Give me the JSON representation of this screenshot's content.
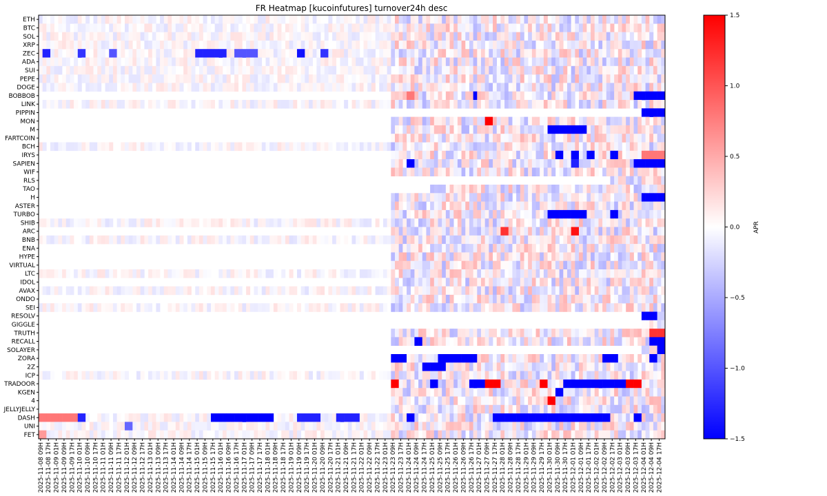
{
  "chart_data": {
    "type": "heatmap",
    "title": "FR Heatmap [kucoinfutures] turnover24h desc",
    "colorbar_label": "APR",
    "colormap": "bwr",
    "vmin": -1.5,
    "vmax": 1.5,
    "colorbar_ticks": [
      "1.5",
      "1.0",
      "0.5",
      "0.0",
      "−0.5",
      "−1.0",
      "−1.5"
    ],
    "colorbar_tick_values": [
      1.5,
      1.0,
      0.5,
      0.0,
      -0.5,
      -1.0,
      -1.5
    ],
    "rows": [
      "ETH",
      "BTC",
      "SOL",
      "XRP",
      "ZEC",
      "ADA",
      "SUI",
      "PEPE",
      "DOGE",
      "BOBBOB",
      "LINK",
      "PIPPIN",
      "MON",
      "M",
      "FARTCOIN",
      "BCH",
      "IRYS",
      "SAPIEN",
      "WIF",
      "RLS",
      "TAO",
      "H",
      "ASTER",
      "TURBO",
      "SHIB",
      "ARC",
      "BNB",
      "ENA",
      "HYPE",
      "VIRTUAL",
      "LTC",
      "IDOL",
      "AVAX",
      "ONDO",
      "SEI",
      "RESOLV",
      "GIGGLE",
      "TRUTH",
      "RECALL",
      "SOLAYER",
      "ZORA",
      "2Z",
      "ICP",
      "TRADOOR",
      "KGEN",
      "4",
      "JELLYJELLY",
      "DASH",
      "UNI",
      "FET"
    ],
    "x_labels": [
      "2025-11-08 09H",
      "2025-11-08 17H",
      "2025-11-09 01H",
      "2025-11-09 09H",
      "2025-11-09 17H",
      "2025-11-10 01H",
      "2025-11-10 09H",
      "2025-11-10 17H",
      "2025-11-11 01H",
      "2025-11-11 09H",
      "2025-11-11 17H",
      "2025-11-12 01H",
      "2025-11-12 09H",
      "2025-11-12 17H",
      "2025-11-13 01H",
      "2025-11-13 09H",
      "2025-11-13 17H",
      "2025-11-14 01H",
      "2025-11-14 09H",
      "2025-11-14 17H",
      "2025-11-15 01H",
      "2025-11-15 09H",
      "2025-11-15 17H",
      "2025-11-16 01H",
      "2025-11-16 09H",
      "2025-11-16 17H",
      "2025-11-17 01H",
      "2025-11-17 09H",
      "2025-11-17 17H",
      "2025-11-18 01H",
      "2025-11-18 09H",
      "2025-11-18 17H",
      "2025-11-19 01H",
      "2025-11-19 09H",
      "2025-11-19 17H",
      "2025-11-20 01H",
      "2025-11-20 09H",
      "2025-11-20 17H",
      "2025-11-21 01H",
      "2025-11-21 09H",
      "2025-11-21 17H",
      "2025-11-22 01H",
      "2025-11-22 09H",
      "2025-11-22 17H",
      "2025-11-23 01H",
      "2025-11-23 09H",
      "2025-11-23 17H",
      "2025-11-24 01H",
      "2025-11-24 09H",
      "2025-11-24 17H",
      "2025-11-25 01H",
      "2025-11-25 09H",
      "2025-11-25 17H",
      "2025-11-26 01H",
      "2025-11-26 09H",
      "2025-11-26 17H",
      "2025-11-27 01H",
      "2025-11-27 09H",
      "2025-11-27 17H",
      "2025-11-28 01H",
      "2025-11-28 09H",
      "2025-11-28 17H",
      "2025-11-29 01H",
      "2025-11-29 09H",
      "2025-11-29 17H",
      "2025-11-30 01H",
      "2025-11-30 09H",
      "2025-11-30 17H",
      "2025-12-01 01H",
      "2025-12-01 09H",
      "2025-12-01 17H",
      "2025-12-02 01H",
      "2025-12-02 09H",
      "2025-12-02 17H",
      "2025-12-03 01H",
      "2025-12-03 09H",
      "2025-12-03 17H",
      "2025-12-04 01H",
      "2025-12-04 09H",
      "2025-12-04 17H"
    ],
    "cells_per_label": 2,
    "num_columns": 160,
    "listing_start_column": 90,
    "missing_before_listing_rows": [
      "BOBBOB",
      "PIPPIN",
      "MON",
      "M",
      "FARTCOIN",
      "IRYS",
      "SAPIEN",
      "WIF",
      "RLS",
      "TAO",
      "H",
      "ASTER",
      "TURBO",
      "ARC",
      "ENA",
      "HYPE",
      "VIRTUAL",
      "IDOL",
      "ONDO",
      "RESOLV",
      "GIGGLE",
      "TRUTH",
      "RECALL",
      "SOLAYER",
      "ZORA",
      "2Z",
      "TRADOOR",
      "KGEN",
      "4",
      "JELLYJELLY"
    ],
    "late_listing": {
      "PIPPIN": 154,
      "RESOLV": 154,
      "GIGGLE": 154,
      "SOLAYER": 154,
      "RLS": 146,
      "TAO": 100
    },
    "strong_segments": [
      {
        "row": "ZEC",
        "ranges": [
          [
            1,
            3,
            -1.3
          ],
          [
            10,
            12,
            -1.2
          ],
          [
            18,
            20,
            -1.0
          ],
          [
            40,
            48,
            -1.3
          ],
          [
            50,
            56,
            -1.0
          ],
          [
            66,
            68,
            -1.4
          ],
          [
            72,
            74,
            -1.2
          ]
        ]
      },
      {
        "row": "BOBBOB",
        "ranges": [
          [
            152,
            160,
            -1.5
          ],
          [
            94,
            96,
            0.8
          ],
          [
            111,
            112,
            -1.5
          ]
        ]
      },
      {
        "row": "PIPPIN",
        "ranges": [
          [
            154,
            160,
            -1.5
          ]
        ]
      },
      {
        "row": "MON",
        "ranges": [
          [
            114,
            116,
            1.5
          ]
        ]
      },
      {
        "row": "M",
        "ranges": [
          [
            130,
            140,
            -1.5
          ]
        ]
      },
      {
        "row": "IRYS",
        "ranges": [
          [
            132,
            134,
            -1.5
          ],
          [
            136,
            138,
            -1.5
          ],
          [
            140,
            142,
            -1.5
          ],
          [
            146,
            148,
            -1.5
          ],
          [
            154,
            160,
            0.8
          ]
        ]
      },
      {
        "row": "SAPIEN",
        "ranges": [
          [
            94,
            96,
            -1.5
          ],
          [
            152,
            160,
            -1.5
          ],
          [
            136,
            138,
            -1.3
          ]
        ]
      },
      {
        "row": "H",
        "ranges": [
          [
            154,
            160,
            -1.5
          ]
        ]
      },
      {
        "row": "TURBO",
        "ranges": [
          [
            130,
            140,
            -1.5
          ],
          [
            146,
            148,
            -1.5
          ],
          [
            160,
            160,
            0
          ]
        ]
      },
      {
        "row": "ARC",
        "ranges": [
          [
            118,
            120,
            1.2
          ],
          [
            136,
            138,
            1.4
          ]
        ]
      },
      {
        "row": "RESOLV",
        "ranges": [
          [
            154,
            158,
            -1.5
          ]
        ]
      },
      {
        "row": "TRUTH",
        "ranges": [
          [
            156,
            160,
            1.2
          ]
        ]
      },
      {
        "row": "RECALL",
        "ranges": [
          [
            96,
            98,
            -1.5
          ],
          [
            156,
            160,
            -1.5
          ]
        ]
      },
      {
        "row": "SOLAYER",
        "ranges": [
          [
            158,
            160,
            -1.5
          ]
        ]
      },
      {
        "row": "ZORA",
        "ranges": [
          [
            90,
            94,
            -1.5
          ],
          [
            102,
            112,
            -1.5
          ],
          [
            144,
            148,
            -1.5
          ],
          [
            156,
            158,
            -1.5
          ]
        ]
      },
      {
        "row": "2Z",
        "ranges": [
          [
            98,
            104,
            -1.5
          ]
        ]
      },
      {
        "row": "TRADOOR",
        "ranges": [
          [
            90,
            92,
            1.5
          ],
          [
            100,
            102,
            -1.5
          ],
          [
            110,
            114,
            -1.5
          ],
          [
            114,
            118,
            1.5
          ],
          [
            128,
            130,
            1.5
          ],
          [
            134,
            154,
            -1.5
          ],
          [
            150,
            154,
            1.5
          ]
        ]
      },
      {
        "row": "KGEN",
        "ranges": [
          [
            132,
            134,
            -1.5
          ]
        ]
      },
      {
        "row": "4",
        "ranges": [
          [
            130,
            132,
            1.5
          ]
        ]
      },
      {
        "row": "DASH",
        "ranges": [
          [
            0,
            10,
            0.8
          ],
          [
            10,
            12,
            -1.3
          ],
          [
            44,
            60,
            -1.5
          ],
          [
            66,
            72,
            -1.3
          ],
          [
            76,
            82,
            -1.3
          ],
          [
            94,
            96,
            -1.5
          ],
          [
            116,
            146,
            -1.5
          ],
          [
            152,
            154,
            -1.5
          ]
        ]
      },
      {
        "row": "UNI",
        "ranges": [
          [
            22,
            24,
            -0.9
          ]
        ]
      },
      {
        "row": "FET",
        "ranges": [
          [
            0,
            2,
            0.6
          ]
        ]
      }
    ]
  }
}
